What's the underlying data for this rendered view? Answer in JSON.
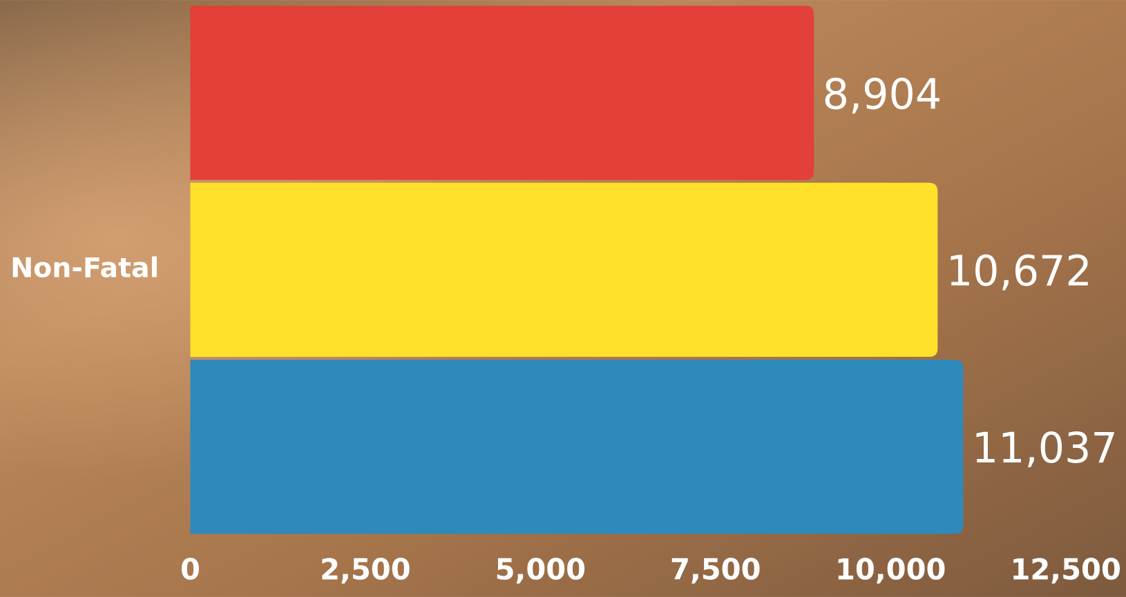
{
  "chart_data": {
    "type": "hbar",
    "categories": [
      "Non-Fatal"
    ],
    "series": [
      {
        "color": "#e24038",
        "values": [
          8904
        ],
        "value_labels": [
          "8,904"
        ]
      },
      {
        "color": "#ffe02a",
        "values": [
          10672
        ],
        "value_labels": [
          "10,672"
        ]
      },
      {
        "color": "#2e8abb",
        "values": [
          11037
        ],
        "value_labels": [
          "11,037"
        ]
      }
    ],
    "xlim": [
      0,
      12500
    ],
    "xticks": [
      0,
      {
        "value": 2500,
        "label": "2,500"
      },
      {
        "value": 5000,
        "label": "5,000"
      },
      {
        "value": 7500,
        "label": "7,500"
      },
      {
        "value": 10000,
        "label": "10,000"
      },
      {
        "value": 12500,
        "label": "12,500"
      }
    ]
  }
}
